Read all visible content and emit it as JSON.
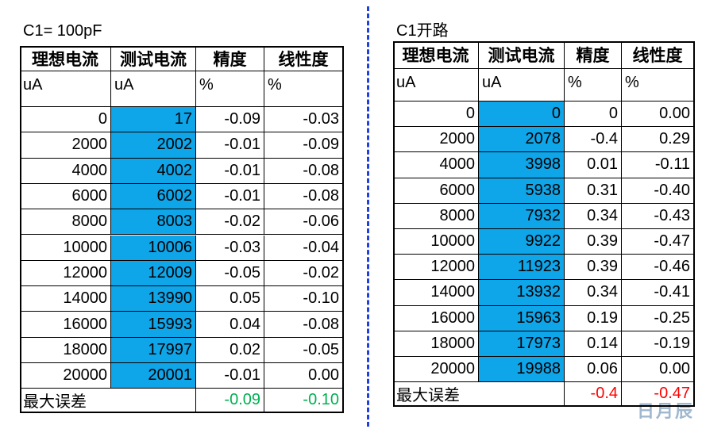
{
  "tables": [
    {
      "title": "C1= 100pF",
      "headers": [
        "理想电流",
        "测试电流",
        "精度",
        "线性度"
      ],
      "units": [
        "uA",
        "uA",
        "%",
        "%"
      ],
      "rows": [
        [
          "0",
          "17",
          "-0.09",
          "-0.03"
        ],
        [
          "2000",
          "2002",
          "-0.01",
          "-0.09"
        ],
        [
          "4000",
          "4002",
          "-0.01",
          "-0.08"
        ],
        [
          "6000",
          "6002",
          "-0.01",
          "-0.08"
        ],
        [
          "8000",
          "8003",
          "-0.02",
          "-0.06"
        ],
        [
          "10000",
          "10006",
          "-0.03",
          "-0.04"
        ],
        [
          "12000",
          "12009",
          "-0.05",
          "-0.02"
        ],
        [
          "14000",
          "13990",
          "0.05",
          "-0.10"
        ],
        [
          "16000",
          "15993",
          "0.04",
          "-0.08"
        ],
        [
          "18000",
          "17997",
          "0.02",
          "-0.05"
        ],
        [
          "20000",
          "20001",
          "-0.01",
          "0.00"
        ]
      ],
      "footer": {
        "label": "最大误差",
        "values": [
          "-0.09",
          "-0.10"
        ],
        "color": "#00b050"
      }
    },
    {
      "title": "C1开路",
      "headers": [
        "理想电流",
        "测试电流",
        "精度",
        "线性度"
      ],
      "units": [
        "uA",
        "uA",
        "%",
        "%"
      ],
      "rows": [
        [
          "0",
          "0",
          "0",
          "0.00"
        ],
        [
          "2000",
          "2078",
          "-0.4",
          "0.29"
        ],
        [
          "4000",
          "3998",
          "0.01",
          "-0.11"
        ],
        [
          "6000",
          "5938",
          "0.31",
          "-0.40"
        ],
        [
          "8000",
          "7932",
          "0.34",
          "-0.43"
        ],
        [
          "10000",
          "9922",
          "0.39",
          "-0.47"
        ],
        [
          "12000",
          "11923",
          "0.39",
          "-0.46"
        ],
        [
          "14000",
          "13932",
          "0.34",
          "-0.41"
        ],
        [
          "16000",
          "15963",
          "0.19",
          "-0.25"
        ],
        [
          "18000",
          "17973",
          "0.14",
          "-0.19"
        ],
        [
          "20000",
          "19988",
          "0.06",
          "0.00"
        ]
      ],
      "footer": {
        "label": "最大误差",
        "values": [
          "-0.4",
          "-0.47"
        ],
        "color": "#ff0000"
      }
    }
  ],
  "watermark": "日月辰"
}
